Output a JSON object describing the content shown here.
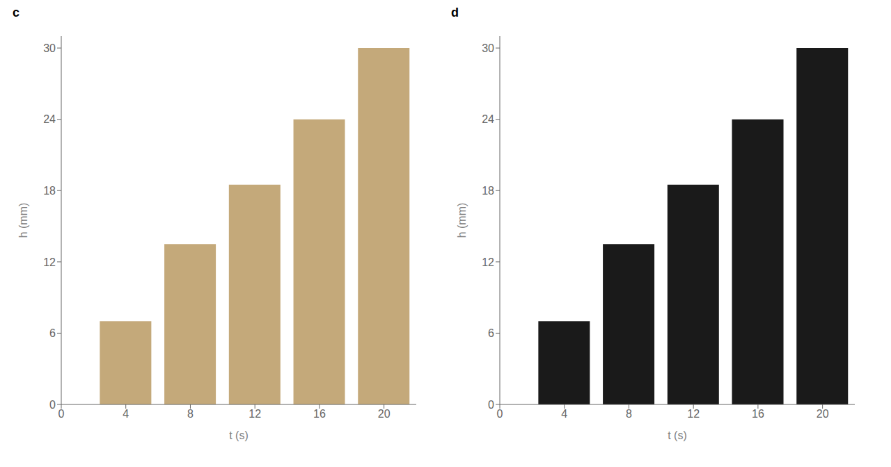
{
  "chart_data": [
    {
      "type": "bar",
      "title": "c",
      "x": [
        4,
        8,
        12,
        16,
        20
      ],
      "values": [
        7,
        13.5,
        18.5,
        24,
        30
      ],
      "color": "#C4A97A",
      "xlabel": "t (s)",
      "ylabel": "h (mm)",
      "xlim": [
        0,
        22
      ],
      "ylim": [
        0,
        31
      ],
      "xticks": [
        0,
        4,
        8,
        12,
        16,
        20
      ],
      "yticks": [
        0,
        6,
        12,
        18,
        24,
        30
      ]
    },
    {
      "type": "bar",
      "title": "d",
      "x": [
        4,
        8,
        12,
        16,
        20
      ],
      "values": [
        7,
        13.5,
        18.5,
        24,
        30
      ],
      "color": "#1A1A1A",
      "xlabel": "t (s)",
      "ylabel": "h (mm)",
      "xlim": [
        0,
        22
      ],
      "ylim": [
        0,
        31
      ],
      "xticks": [
        0,
        4,
        8,
        12,
        16,
        20
      ],
      "yticks": [
        0,
        6,
        12,
        18,
        24,
        30
      ]
    }
  ]
}
